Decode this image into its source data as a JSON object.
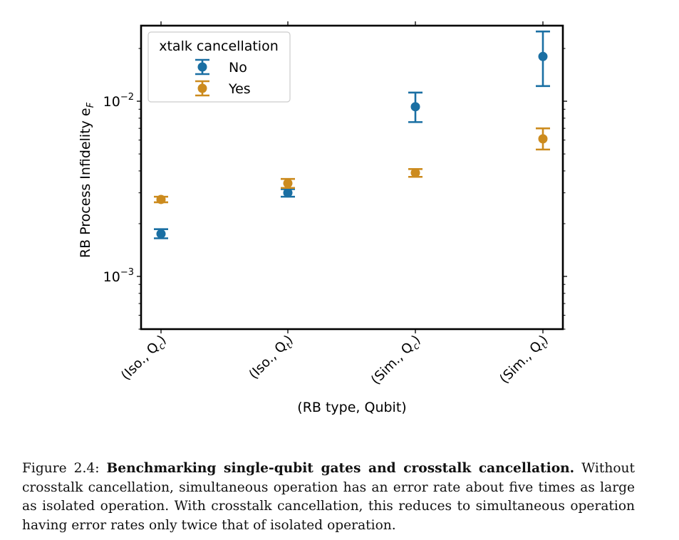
{
  "chart_data": {
    "type": "scatter",
    "subtype": "errorbar",
    "categories": [
      "(Iso., Q_c)",
      "(Iso., Q_t)",
      "(Sim., Q_c)",
      "(Sim., Q_t)"
    ],
    "category_labels": [
      {
        "prefix": "(Iso., Q",
        "sub": "c",
        "suffix": ")"
      },
      {
        "prefix": "(Iso., Q",
        "sub": "t",
        "suffix": ")"
      },
      {
        "prefix": "(Sim., Q",
        "sub": "c",
        "suffix": ")"
      },
      {
        "prefix": "(Sim., Q",
        "sub": "t",
        "suffix": ")"
      }
    ],
    "xlabel": "(RB type, Qubit)",
    "ylabel": {
      "text": "RB Process Infidelity e",
      "sub": "F"
    },
    "yscale": "log",
    "ylim": [
      0.0005,
      0.027
    ],
    "yticks": [
      {
        "value": 0.001,
        "base": "10",
        "exp": "−3"
      },
      {
        "value": 0.01,
        "base": "10",
        "exp": "−2"
      }
    ],
    "grid": false,
    "legend": {
      "title": "xtalk cancellation",
      "position": "top-left"
    },
    "series": [
      {
        "name": "No",
        "color": "#1a6fa3",
        "values": [
          0.00175,
          0.003,
          0.0093,
          0.018
        ],
        "err_low": [
          0.00165,
          0.00285,
          0.0076,
          0.0122
        ],
        "err_high": [
          0.00186,
          0.00315,
          0.0112,
          0.025
        ]
      },
      {
        "name": "Yes",
        "color": "#cc8b1e",
        "values": [
          0.00275,
          0.0034,
          0.0039,
          0.0061
        ],
        "err_low": [
          0.00265,
          0.0032,
          0.0037,
          0.0053
        ],
        "err_high": [
          0.00285,
          0.0036,
          0.0041,
          0.007
        ]
      }
    ]
  },
  "caption": {
    "label": "Figure 2.4:",
    "bold": "Benchmarking single-qubit gates and crosstalk cancellation.",
    "text": "Without crosstalk cancellation, simultaneous operation has an error rate about five times as large as isolated operation. With crosstalk cancellation, this reduces to simultaneous operation having error rates only twice that of isolated operation."
  }
}
